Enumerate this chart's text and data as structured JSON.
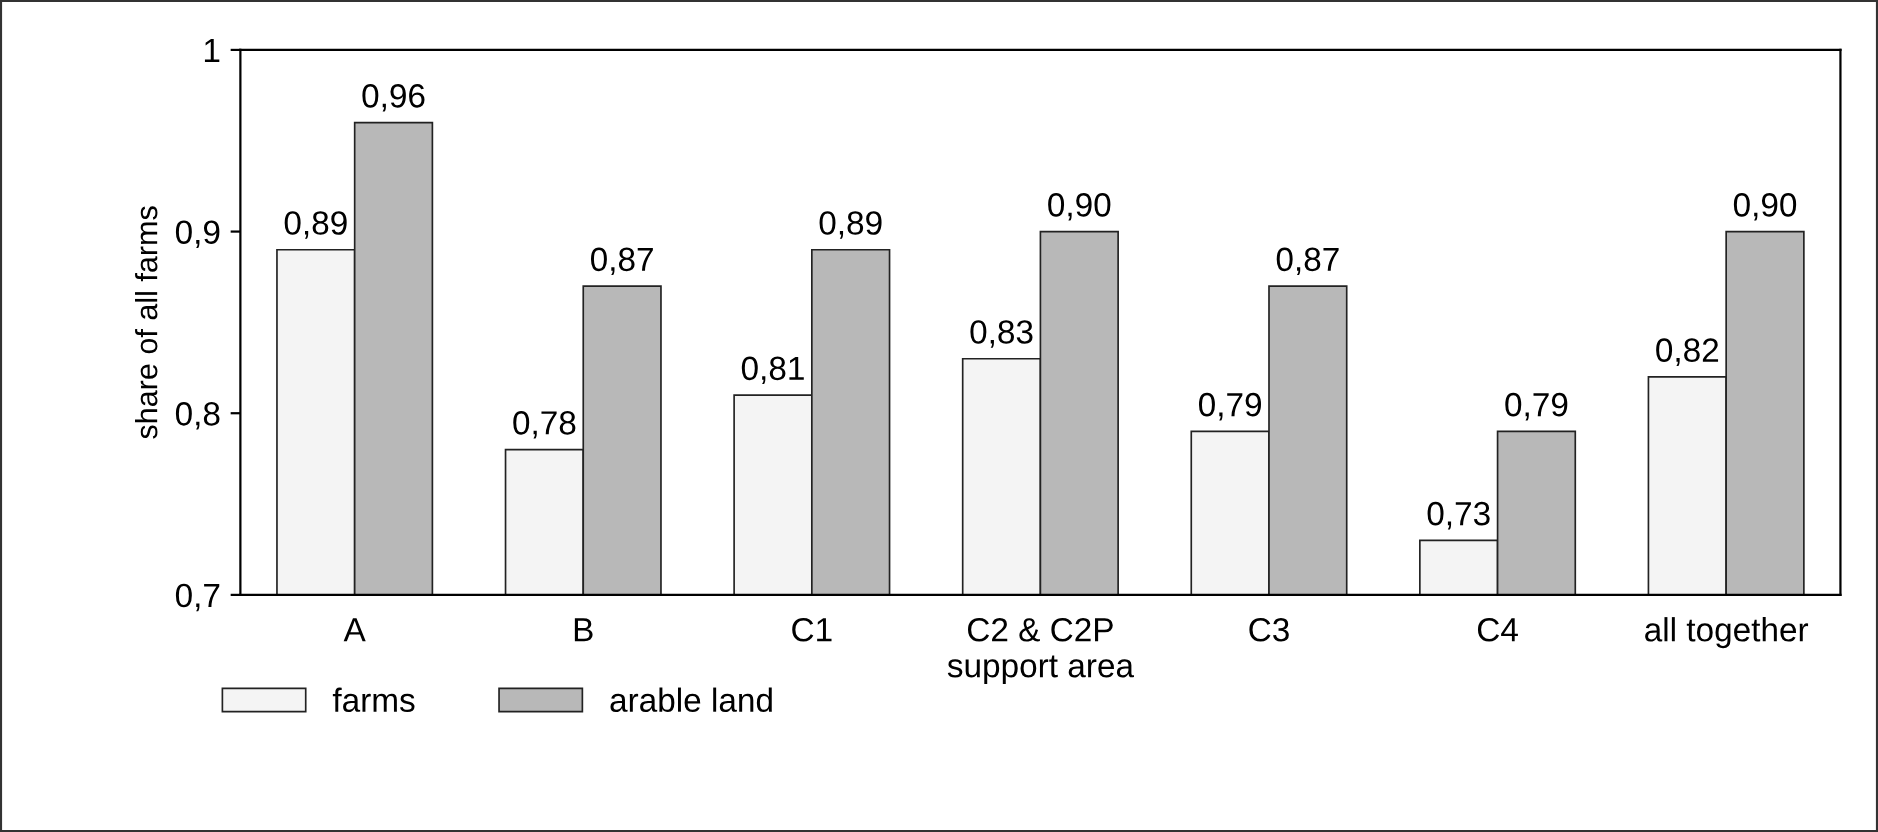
{
  "chart_data": {
    "type": "bar",
    "ylabel": "share of all farms",
    "categories": [
      "A",
      "B",
      "C1",
      "C2 & C2P\nsupport area",
      "C3",
      "C4",
      "all together"
    ],
    "series": [
      {
        "name": "farms",
        "color": "#f4f4f4",
        "values": [
          0.89,
          0.78,
          0.81,
          0.83,
          0.79,
          0.73,
          0.82
        ],
        "value_labels": [
          "0,89",
          "0,78",
          "0,81",
          "0,83",
          "0,79",
          "0,73",
          "0,82"
        ]
      },
      {
        "name": "arable land",
        "color": "#b8b8b8",
        "values": [
          0.96,
          0.87,
          0.89,
          0.9,
          0.87,
          0.79,
          0.9
        ],
        "value_labels": [
          "0,96",
          "0,87",
          "0,89",
          "0,90",
          "0,87",
          "0,79",
          "0,90"
        ]
      }
    ],
    "ylim": [
      0.7,
      1
    ],
    "yticks": [
      {
        "value": 0.7,
        "label": "0,7"
      },
      {
        "value": 0.8,
        "label": "0,8"
      },
      {
        "value": 0.9,
        "label": "0,9"
      },
      {
        "value": 1,
        "label": "1"
      }
    ],
    "grid": false,
    "legend": "bottom left"
  }
}
